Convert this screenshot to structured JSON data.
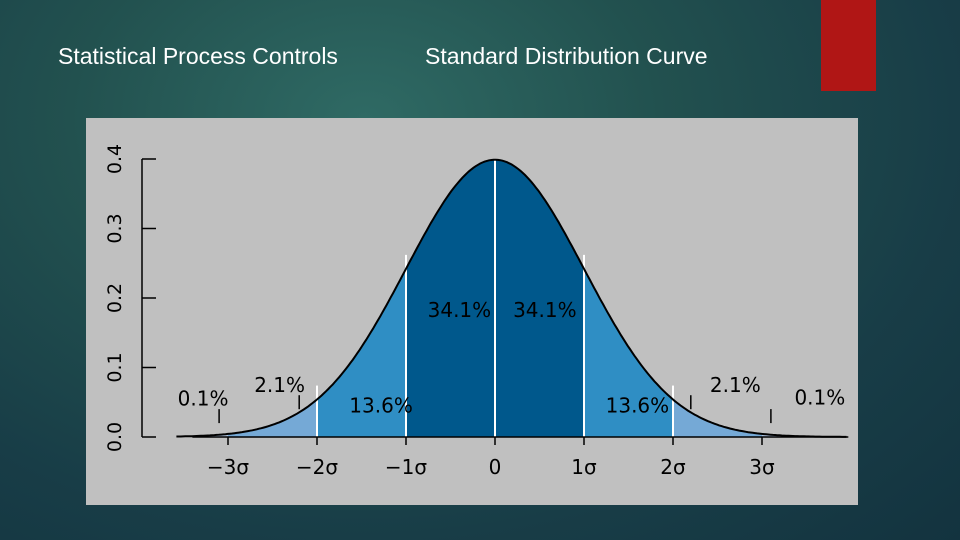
{
  "slide": {
    "title_left": "Statistical Process Controls",
    "title_right": "Standard Distribution Curve",
    "accent_color": "#b01615",
    "panel_color": "#c0c0c0"
  },
  "chart_data": {
    "type": "area",
    "title": "",
    "xlabel": "",
    "ylabel": "",
    "xlim": [
      -4,
      4
    ],
    "ylim": [
      0,
      0.4
    ],
    "yticks": [
      "0.0",
      "0.1",
      "0.2",
      "0.3",
      "0.4"
    ],
    "xticks": [
      {
        "x": -3,
        "label": "−3σ"
      },
      {
        "x": -2,
        "label": "−2σ"
      },
      {
        "x": -1,
        "label": "−1σ"
      },
      {
        "x": 0,
        "label": "0"
      },
      {
        "x": 1,
        "label": "1σ"
      },
      {
        "x": 2,
        "label": "2σ"
      },
      {
        "x": 3,
        "label": "3σ"
      }
    ],
    "curve": "standard normal density, mean 0, sd 1",
    "regions": [
      {
        "from": -4,
        "to": -3,
        "percent": "0.1%",
        "color": "#b0c4de"
      },
      {
        "from": -3,
        "to": -2,
        "percent": "2.1%",
        "color": "#75a9d6"
      },
      {
        "from": -2,
        "to": -1,
        "percent": "13.6%",
        "color": "#2f8ec4"
      },
      {
        "from": -1,
        "to": 0,
        "percent": "34.1%",
        "color": "#00588c"
      },
      {
        "from": 0,
        "to": 1,
        "percent": "34.1%",
        "color": "#00588c"
      },
      {
        "from": 1,
        "to": 2,
        "percent": "13.6%",
        "color": "#2f8ec4"
      },
      {
        "from": 2,
        "to": 3,
        "percent": "2.1%",
        "color": "#75a9d6"
      },
      {
        "from": 3,
        "to": 4,
        "percent": "0.1%",
        "color": "#b0c4de"
      }
    ],
    "grid": false
  }
}
